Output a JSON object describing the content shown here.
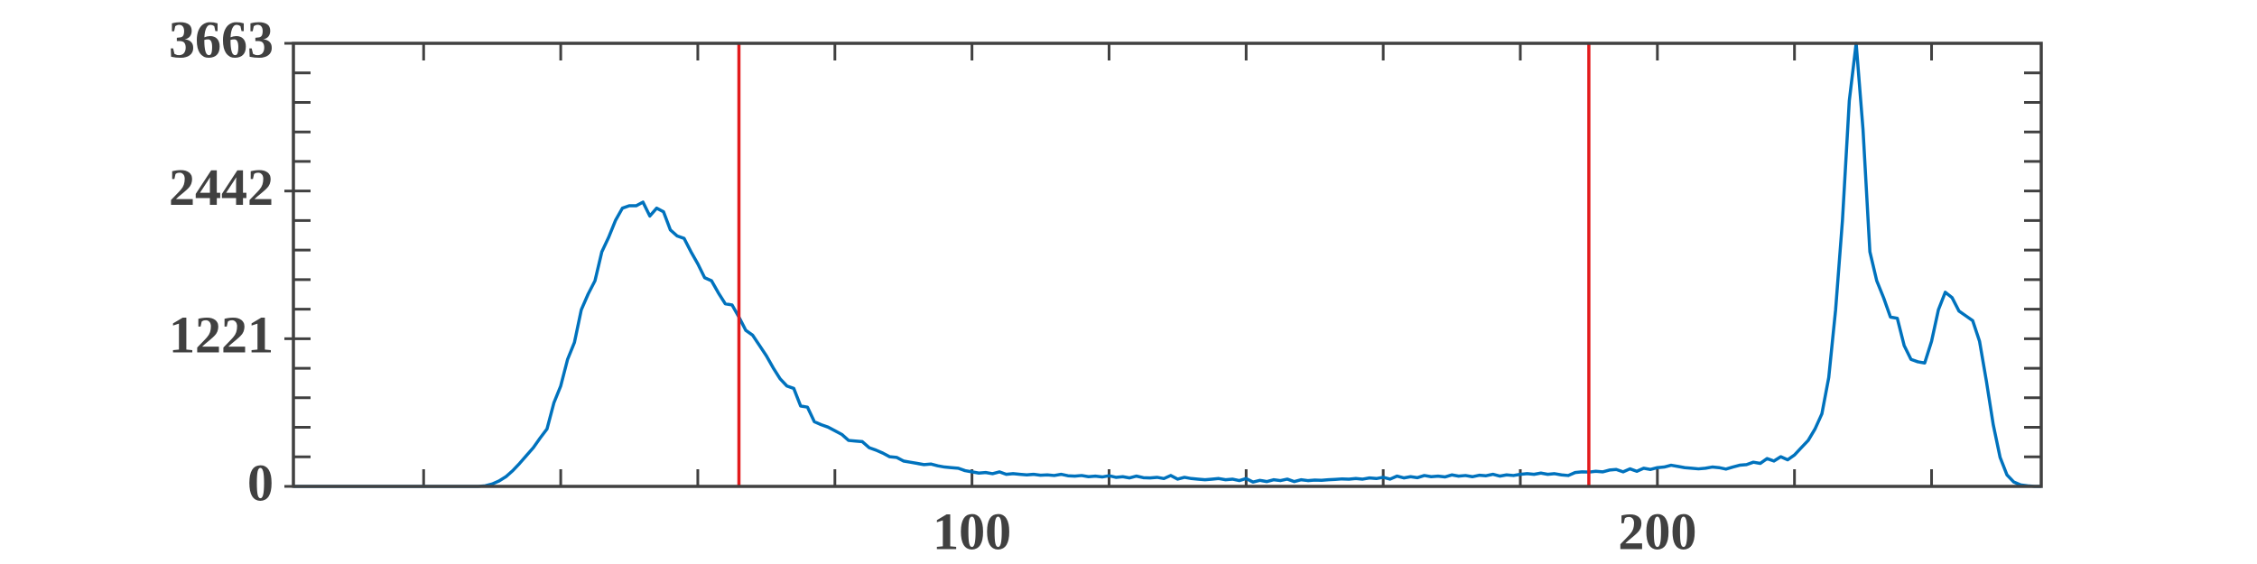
{
  "chart_data": {
    "type": "line",
    "x": [
      1,
      2,
      3,
      4,
      5,
      6,
      7,
      8,
      9,
      10,
      11,
      12,
      13,
      14,
      15,
      16,
      17,
      18,
      19,
      20,
      21,
      22,
      23,
      24,
      25,
      26,
      27,
      28,
      29,
      30,
      31,
      32,
      33,
      34,
      35,
      36,
      37,
      38,
      39,
      40,
      41,
      42,
      43,
      44,
      45,
      46,
      47,
      48,
      49,
      50,
      51,
      52,
      53,
      54,
      55,
      56,
      57,
      58,
      59,
      60,
      61,
      62,
      63,
      64,
      65,
      66,
      67,
      68,
      69,
      70,
      71,
      72,
      73,
      74,
      75,
      76,
      77,
      78,
      79,
      80,
      81,
      82,
      83,
      84,
      85,
      86,
      87,
      88,
      89,
      90,
      91,
      92,
      93,
      94,
      95,
      96,
      97,
      98,
      99,
      100,
      101,
      102,
      103,
      104,
      105,
      106,
      107,
      108,
      109,
      110,
      111,
      112,
      113,
      114,
      115,
      116,
      117,
      118,
      119,
      120,
      121,
      122,
      123,
      124,
      125,
      126,
      127,
      128,
      129,
      130,
      131,
      132,
      133,
      134,
      135,
      136,
      137,
      138,
      139,
      140,
      141,
      142,
      143,
      144,
      145,
      146,
      147,
      148,
      149,
      150,
      151,
      152,
      153,
      154,
      155,
      156,
      157,
      158,
      159,
      160,
      161,
      162,
      163,
      164,
      165,
      166,
      167,
      168,
      169,
      170,
      171,
      172,
      173,
      174,
      175,
      176,
      177,
      178,
      179,
      180,
      181,
      182,
      183,
      184,
      185,
      186,
      187,
      188,
      189,
      190,
      191,
      192,
      193,
      194,
      195,
      196,
      197,
      198,
      199,
      200,
      201,
      202,
      203,
      204,
      205,
      206,
      207,
      208,
      209,
      210,
      211,
      212,
      213,
      214,
      215,
      216,
      217,
      218,
      219,
      220,
      221,
      222,
      223,
      224,
      225,
      226,
      227,
      228,
      229,
      230,
      231,
      232,
      233,
      234,
      235,
      236,
      237,
      238,
      239,
      240,
      241,
      242,
      243,
      244,
      245,
      246,
      247,
      248,
      249,
      250,
      251,
      252,
      253,
      254,
      255,
      256
    ],
    "series": [
      {
        "color": "#0072bd",
        "values": [
          0,
          0,
          0,
          0,
          0,
          0,
          0,
          0,
          0,
          0,
          0,
          0,
          0,
          0,
          0,
          0,
          0,
          0,
          0,
          0,
          0,
          0,
          0,
          0,
          0,
          0,
          0,
          0,
          5,
          20,
          45,
          80,
          130,
          190,
          255,
          320,
          400,
          475,
          690,
          830,
          1050,
          1190,
          1460,
          1590,
          1700,
          1940,
          2060,
          2200,
          2300,
          2320,
          2320,
          2350,
          2235,
          2300,
          2270,
          2120,
          2070,
          2050,
          1940,
          1840,
          1725,
          1700,
          1600,
          1510,
          1500,
          1400,
          1290,
          1250,
          1165,
          1080,
          980,
          890,
          830,
          810,
          665,
          655,
          535,
          510,
          490,
          460,
          430,
          380,
          375,
          370,
          320,
          300,
          275,
          245,
          240,
          210,
          200,
          190,
          180,
          185,
          170,
          160,
          155,
          150,
          130,
          120,
          110,
          115,
          105,
          120,
          100,
          105,
          100,
          95,
          100,
          92,
          95,
          90,
          100,
          88,
          85,
          90,
          80,
          85,
          78,
          88,
          75,
          80,
          70,
          85,
          72,
          70,
          75,
          65,
          90,
          60,
          75,
          65,
          60,
          55,
          60,
          65,
          55,
          60,
          48,
          65,
          36,
          50,
          40,
          55,
          48,
          60,
          40,
          55,
          48,
          52,
          50,
          55,
          58,
          62,
          60,
          65,
          60,
          70,
          65,
          75,
          60,
          85,
          70,
          80,
          72,
          90,
          80,
          85,
          78,
          95,
          85,
          90,
          80,
          92,
          88,
          100,
          85,
          95,
          90,
          100,
          105,
          100,
          110,
          100,
          105,
          95,
          90,
          115,
          120,
          118,
          125,
          120,
          135,
          140,
          120,
          145,
          125,
          150,
          140,
          155,
          160,
          175,
          165,
          155,
          150,
          145,
          150,
          160,
          155,
          143,
          160,
          175,
          180,
          200,
          190,
          230,
          210,
          245,
          220,
          260,
          320,
          380,
          475,
          600,
          900,
          1460,
          2200,
          3190,
          3663,
          2950,
          1940,
          1700,
          1560,
          1400,
          1390,
          1165,
          1050,
          1030,
          1020,
          1200,
          1460,
          1605,
          1560,
          1450,
          1410,
          1370,
          1200,
          870,
          510,
          240,
          95,
          36,
          12,
          5,
          0,
          0
        ]
      }
    ],
    "xlim": [
      1,
      256
    ],
    "xticks": [
      100,
      200
    ],
    "xminorticks": [
      20,
      40,
      60,
      80,
      120,
      140,
      160,
      180,
      220,
      240
    ],
    "ylim": [
      0,
      3663
    ],
    "yticks": [
      0,
      1221,
      2442,
      3663
    ],
    "yminorticks": [
      244.2,
      488.4,
      732.6,
      976.8,
      1465.2,
      1709.4,
      1953.6,
      2197.8,
      2686.2,
      2930.4,
      3174.6,
      3418.8
    ],
    "vlines": [
      66,
      190
    ],
    "vline_color": "#e31a1c",
    "axis_color": "#404040",
    "grid": false
  }
}
